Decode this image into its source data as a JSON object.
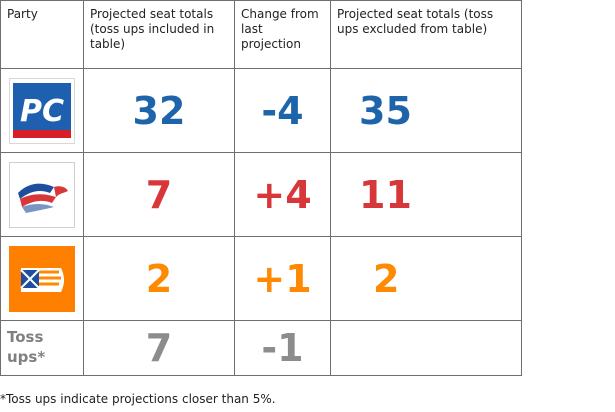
{
  "table": {
    "headers": [
      "Party",
      "Projected seat totals (toss ups included in table)",
      "Change from last projection",
      "Projected seat totals (toss ups excluded from table)"
    ],
    "rows": [
      {
        "party_logo": "pc-logo",
        "logo_text": "PC",
        "included": "32",
        "change": "-4",
        "excluded": "35",
        "color": "#1e64aa"
      },
      {
        "party_logo": "liberal-flag-logo",
        "included": "7",
        "change": "+4",
        "excluded": "11",
        "color": "#d8373a"
      },
      {
        "party_logo": "ndp-flag-logo",
        "included": "2",
        "change": "+1",
        "excluded": "2",
        "color": "#ff8900"
      },
      {
        "party_label": "Toss ups*",
        "included": "7",
        "change": "-1",
        "excluded": "",
        "color": "#8c8c8c"
      }
    ]
  },
  "footnote": "*Toss ups indicate projections closer than 5%."
}
